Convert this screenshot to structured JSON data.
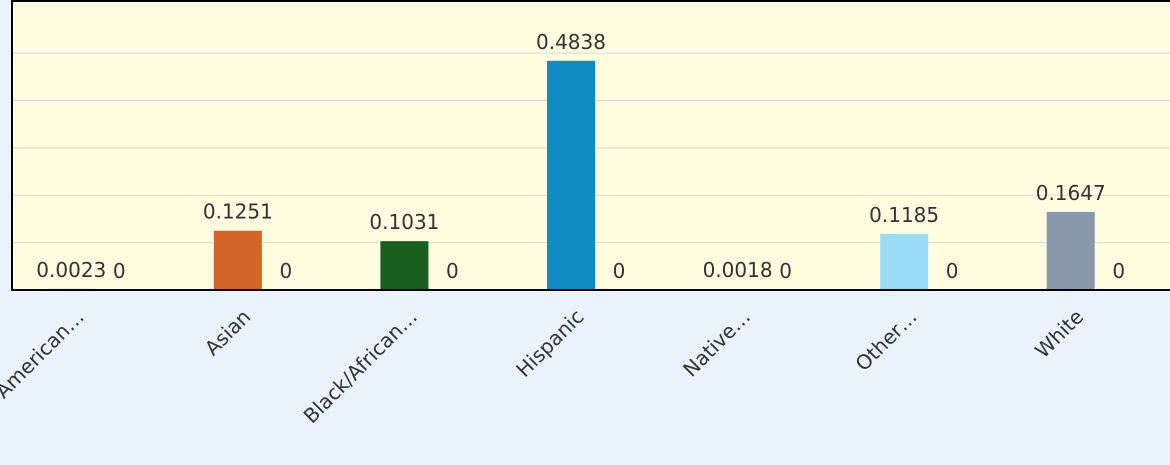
{
  "chart_data": {
    "type": "bar",
    "categories": [
      "American…",
      "Asian",
      "Black/African…",
      "Hispanic",
      "Native…",
      "Other…",
      "White"
    ],
    "series": [
      {
        "colors": [
          "#8a9bb0",
          "#d2642a",
          "#1a5e20",
          "#0e8cc1",
          "#8a9bb0",
          "#9adcf8",
          "#8898aa"
        ],
        "values": [
          0.0023,
          0.1251,
          0.1031,
          0.4838,
          0.0018,
          0.1185,
          0.1647
        ]
      },
      {
        "color": "#8898aa",
        "values": [
          0,
          0,
          0,
          0,
          0,
          0,
          0
        ]
      }
    ],
    "ylim": [
      0,
      0.61
    ],
    "yticks": [
      0,
      0.1,
      0.2,
      0.3,
      0.4,
      0.5
    ],
    "grid": true
  }
}
